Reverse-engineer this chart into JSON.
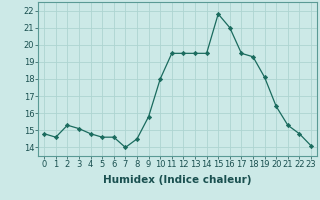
{
  "x": [
    0,
    1,
    2,
    3,
    4,
    5,
    6,
    7,
    8,
    9,
    10,
    11,
    12,
    13,
    14,
    15,
    16,
    17,
    18,
    19,
    20,
    21,
    22,
    23
  ],
  "y": [
    14.8,
    14.6,
    15.3,
    15.1,
    14.8,
    14.6,
    14.6,
    14.0,
    14.5,
    15.8,
    18.0,
    19.5,
    19.5,
    19.5,
    19.5,
    21.8,
    21.0,
    19.5,
    19.3,
    18.1,
    16.4,
    15.3,
    14.8,
    14.1
  ],
  "line_color": "#1a6b5e",
  "marker": "D",
  "marker_size": 2.2,
  "bg_color": "#cce9e7",
  "grid_color": "#aed4d1",
  "xlabel": "Humidex (Indice chaleur)",
  "ylim": [
    13.5,
    22.5
  ],
  "xlim": [
    -0.5,
    23.5
  ],
  "yticks": [
    14,
    15,
    16,
    17,
    18,
    19,
    20,
    21,
    22
  ],
  "xticks": [
    0,
    1,
    2,
    3,
    4,
    5,
    6,
    7,
    8,
    9,
    10,
    11,
    12,
    13,
    14,
    15,
    16,
    17,
    18,
    19,
    20,
    21,
    22,
    23
  ],
  "xlabel_fontsize": 7.5,
  "tick_fontsize": 6.0
}
